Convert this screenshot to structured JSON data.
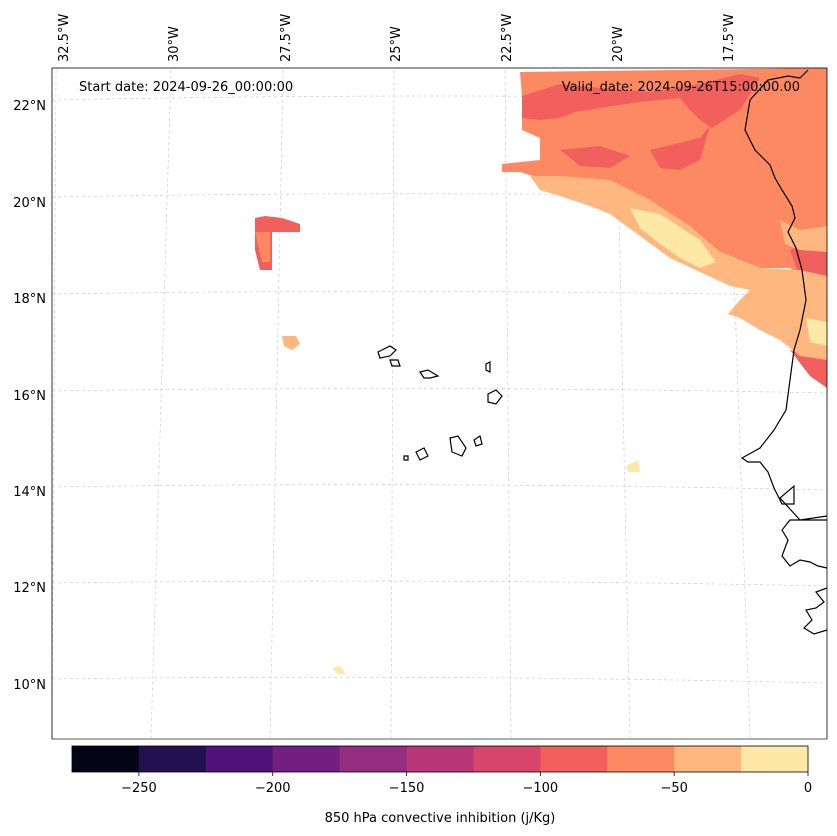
{
  "header": {
    "start_date": "Start date: 2024-09-26_00:00:00",
    "valid_date": "Valid_date: 2024-09-26T15:00:00.00"
  },
  "axes": {
    "lon_ticks": [
      "32.5°W",
      "30°W",
      "27.5°W",
      "25°W",
      "22.5°W",
      "20°W",
      "17.5°W"
    ],
    "lat_ticks": [
      "22°N",
      "20°N",
      "18°N",
      "16°N",
      "14°N",
      "12°N",
      "10°N"
    ]
  },
  "colorbar": {
    "label": "850 hPa convective inhibition (j/Kg)",
    "tick_labels": [
      "−250",
      "−200",
      "−150",
      "−100",
      "−50",
      "0"
    ],
    "colors": [
      "#050416",
      "#221150",
      "#4f127b",
      "#721f81",
      "#942c80",
      "#b73779",
      "#d8456c",
      "#f1605d",
      "#fc8961",
      "#feb77e",
      "#fde8a8"
    ]
  },
  "chart_data": {
    "type": "heatmap",
    "title": "850 hPa convective inhibition (j/Kg)",
    "variable": "850 hPa convective inhibition",
    "units": "j/Kg",
    "start_date": "2024-09-26_00:00:00",
    "valid_date": "2024-09-26T15:00:00.00",
    "lon_range": [
      -33,
      -16.5
    ],
    "lat_range": [
      9,
      23
    ],
    "levels": [
      -275,
      -250,
      -225,
      -200,
      -175,
      -150,
      -125,
      -100,
      -75,
      -50,
      -25,
      0
    ],
    "colorbar_ticks": [
      -250,
      -200,
      -150,
      -100,
      -50,
      0
    ]
  }
}
